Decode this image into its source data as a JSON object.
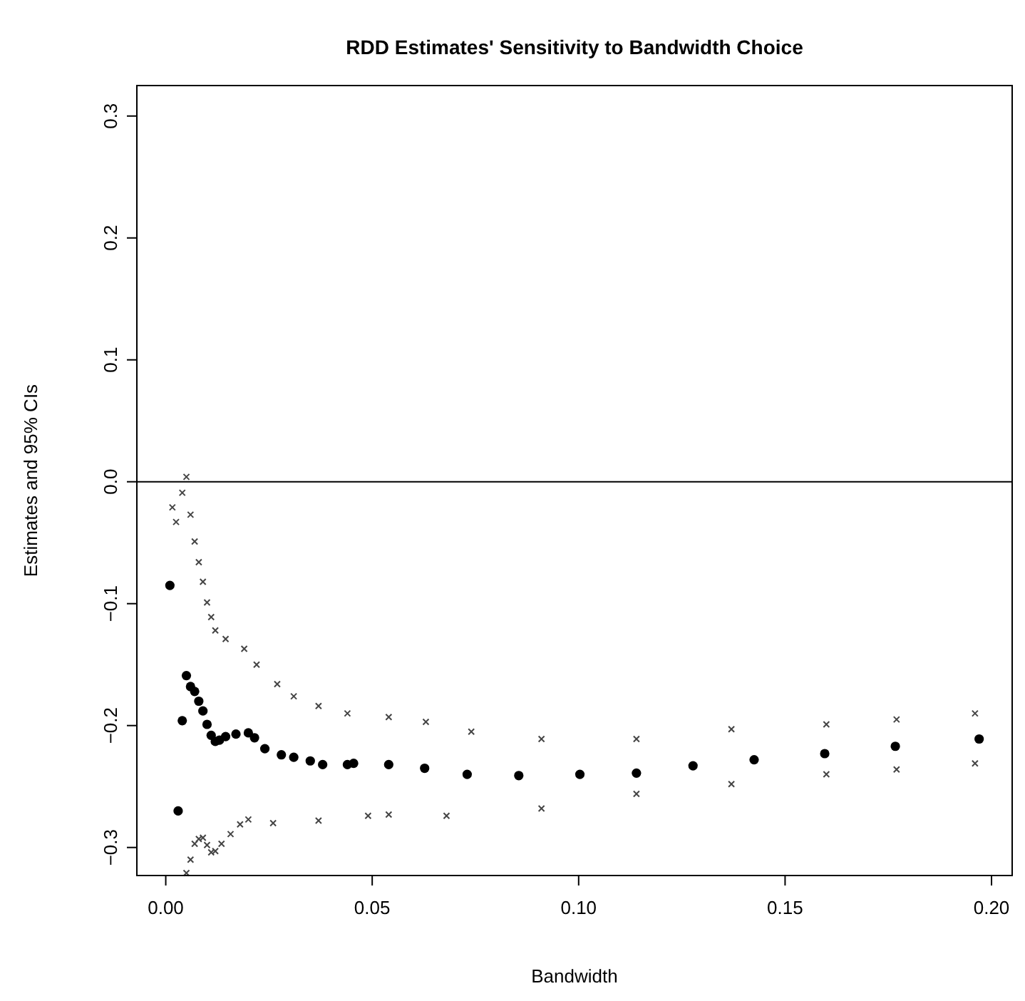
{
  "chart_data": {
    "type": "scatter",
    "title": "RDD Estimates' Sensitivity to Bandwidth Choice",
    "xlabel": "Bandwidth",
    "ylabel": "Estimates and 95% CIs",
    "xlim": [
      -0.007,
      0.205
    ],
    "ylim": [
      -0.323,
      0.325
    ],
    "xticks": [
      {
        "value": 0,
        "label": "0.00"
      },
      0.05,
      {
        "value": 0.1,
        "label": "0.10"
      },
      0.15,
      {
        "value": 0.2,
        "label": "0.20"
      }
    ],
    "yticks": [
      {
        "value": -0.3,
        "label": "−0.3"
      },
      {
        "value": -0.2,
        "label": "−0.2"
      },
      {
        "value": -0.1,
        "label": "−0.1"
      },
      {
        "value": 0,
        "label": "0.0"
      },
      0.1,
      0.2,
      0.3
    ],
    "grid": false,
    "ref_lines": [
      {
        "axis": "y",
        "value": 0,
        "color": "#000000"
      }
    ],
    "series": [
      {
        "color": "#000000",
        "marker": "circle",
        "x": [
          0.001,
          0.003,
          0.004,
          0.005,
          0.006,
          0.007,
          0.008,
          0.009,
          0.01,
          0.011,
          0.012,
          0.013,
          0.0145,
          0.017,
          0.02,
          0.0215,
          0.024,
          0.028,
          0.031,
          0.035,
          0.038,
          0.044,
          0.0455,
          0.054,
          0.0627,
          0.073,
          0.0855,
          0.1003,
          0.114,
          0.1277,
          0.1425,
          0.1596,
          0.1767,
          0.197
        ],
        "values": [
          -0.085,
          -0.27,
          -0.196,
          -0.159,
          -0.168,
          -0.172,
          -0.18,
          -0.188,
          -0.199,
          -0.208,
          -0.213,
          -0.212,
          -0.209,
          -0.207,
          -0.206,
          -0.21,
          -0.219,
          -0.224,
          -0.226,
          -0.229,
          -0.232,
          -0.232,
          -0.231,
          -0.232,
          -0.235,
          -0.24,
          -0.241,
          -0.24,
          -0.239,
          -0.233,
          -0.228,
          -0.223,
          -0.217,
          -0.211
        ]
      },
      {
        "color": "#444444",
        "marker": "cross",
        "x": [
          0.0016,
          0.0025,
          0.004,
          0.005,
          0.006,
          0.007,
          0.008,
          0.009,
          0.01,
          0.011,
          0.012,
          0.0145,
          0.019,
          0.022,
          0.027,
          0.031,
          0.037,
          0.044,
          0.054,
          0.063,
          0.074,
          0.091,
          0.114,
          0.137,
          0.16,
          0.177,
          0.196
        ],
        "values": [
          -0.021,
          -0.033,
          -0.009,
          0.004,
          -0.027,
          -0.049,
          -0.066,
          -0.082,
          -0.099,
          -0.111,
          -0.122,
          -0.129,
          -0.137,
          -0.15,
          -0.166,
          -0.176,
          -0.184,
          -0.19,
          -0.193,
          -0.197,
          -0.205,
          -0.211,
          -0.211,
          -0.203,
          -0.199,
          -0.195,
          -0.19
        ]
      },
      {
        "color": "#444444",
        "marker": "cross",
        "x": [
          0.005,
          0.006,
          0.007,
          0.008,
          0.009,
          0.01,
          0.011,
          0.012,
          0.0135,
          0.0157,
          0.018,
          0.02,
          0.026,
          0.037,
          0.049,
          0.054,
          0.068,
          0.091,
          0.114,
          0.137,
          0.16,
          0.177,
          0.196
        ],
        "values": [
          -0.321,
          -0.31,
          -0.297,
          -0.293,
          -0.292,
          -0.298,
          -0.304,
          -0.303,
          -0.297,
          -0.289,
          -0.281,
          -0.277,
          -0.28,
          -0.278,
          -0.274,
          -0.273,
          -0.274,
          -0.268,
          -0.256,
          -0.248,
          -0.24,
          -0.236,
          -0.231
        ]
      }
    ]
  }
}
